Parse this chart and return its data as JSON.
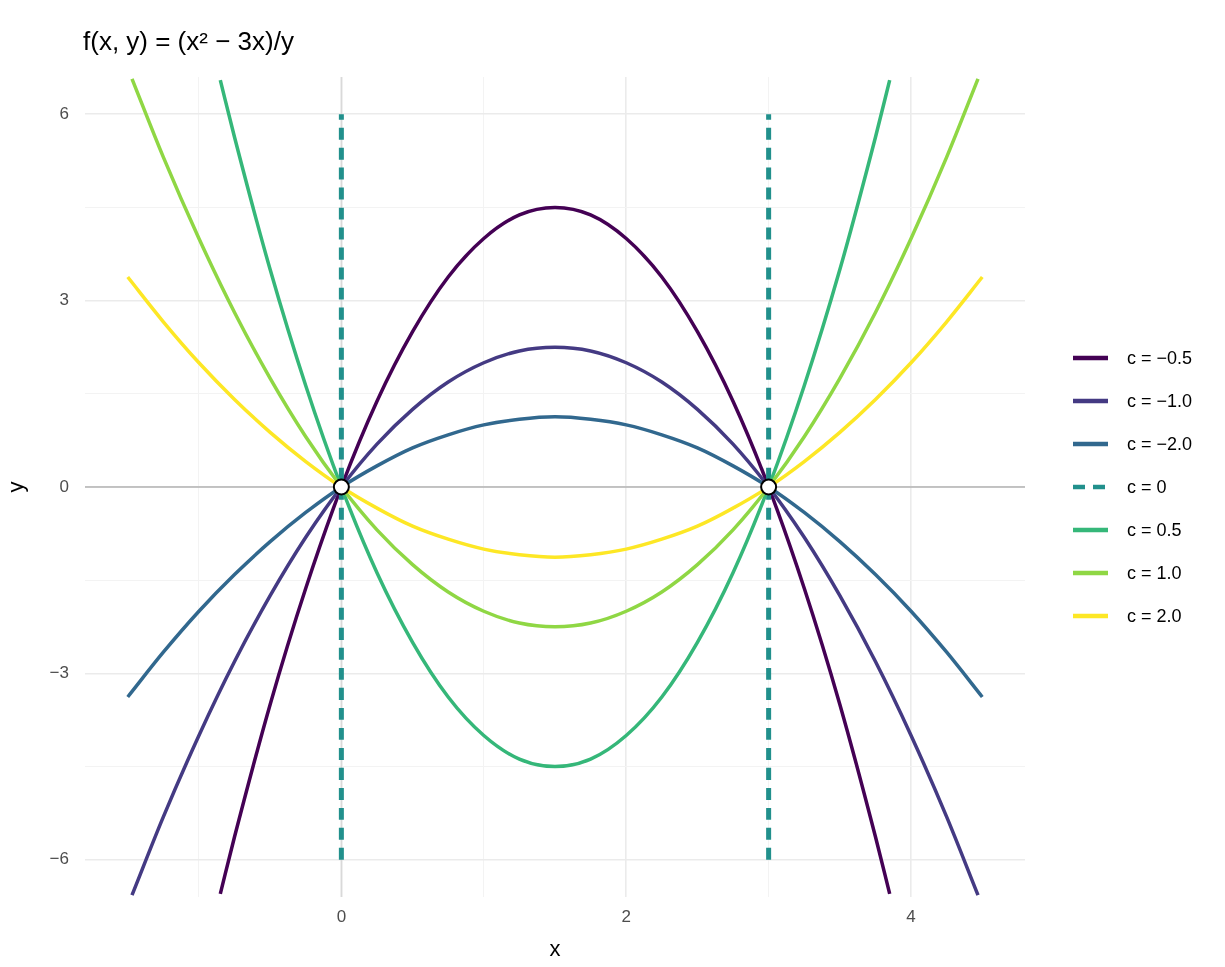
{
  "chart_data": {
    "type": "line",
    "title": "f(x, y) = (x² − 3x)/y",
    "xlabel": "x",
    "ylabel": "y",
    "xlim": [
      -1.8,
      4.8
    ],
    "ylim": [
      -6.6,
      6.6
    ],
    "xticks": [
      {
        "value": -1,
        "label": null
      },
      0,
      {
        "value": 1,
        "label": null
      },
      2,
      {
        "value": 3,
        "label": null
      },
      4
    ],
    "yticks": [
      {
        "value": -6,
        "label": "−6"
      },
      {
        "value": -4.5,
        "label": null
      },
      {
        "value": -3,
        "label": "−3"
      },
      {
        "value": -1.5,
        "label": null
      },
      0,
      {
        "value": 1.5,
        "label": null
      },
      3,
      {
        "value": 4.5,
        "label": null
      },
      6
    ],
    "grid": true,
    "legend": "right",
    "ref_lines": [
      {
        "axis": "y",
        "value": 0,
        "color": "#b3b3b3"
      },
      {
        "axis": "x",
        "value": 0,
        "color": "#d9d9d9"
      }
    ],
    "series": [
      {
        "name": "c = −0.5",
        "color": "#440154",
        "x": [
          -0.85,
          -0.75,
          -0.5,
          -0.25,
          0,
          0.25,
          0.5,
          0.75,
          1,
          1.25,
          1.5,
          1.75,
          2,
          2.25,
          2.5,
          2.75,
          3,
          3.25,
          3.5,
          3.75,
          3.85
        ],
        "values": [
          -6.55,
          -5.63,
          -3.5,
          -1.63,
          0,
          1.38,
          2.5,
          3.38,
          4,
          4.38,
          4.5,
          4.38,
          4,
          3.38,
          2.5,
          1.38,
          0,
          -1.63,
          -3.5,
          -5.63,
          -6.55
        ]
      },
      {
        "name": "c = −1.0",
        "color": "#443a83",
        "x": [
          -1.47,
          -1.25,
          -1,
          -0.75,
          -0.5,
          -0.25,
          0,
          0.25,
          0.5,
          0.75,
          1,
          1.25,
          1.5,
          1.75,
          2,
          2.25,
          2.5,
          2.75,
          3,
          3.25,
          3.5,
          3.75,
          4,
          4.25,
          4.47
        ],
        "values": [
          -6.57,
          -5.31,
          -4,
          -2.81,
          -1.75,
          -0.81,
          0,
          0.69,
          1.25,
          1.69,
          2,
          2.19,
          2.25,
          2.19,
          2,
          1.69,
          1.25,
          0.69,
          0,
          -0.81,
          -1.75,
          -2.81,
          -4,
          -5.31,
          -6.57
        ]
      },
      {
        "name": "c = −2.0",
        "color": "#31688e",
        "x": [
          -1.5,
          -1.25,
          -1,
          -0.75,
          -0.5,
          -0.25,
          0,
          0.25,
          0.5,
          0.75,
          1,
          1.25,
          1.5,
          1.75,
          2,
          2.25,
          2.5,
          2.75,
          3,
          3.25,
          3.5,
          3.75,
          4,
          4.25,
          4.5
        ],
        "values": [
          -3.38,
          -2.66,
          -2,
          -1.41,
          -0.88,
          -0.41,
          0,
          0.34,
          0.63,
          0.84,
          1,
          1.09,
          1.13,
          1.09,
          1,
          0.84,
          0.63,
          0.34,
          0,
          -0.41,
          -0.88,
          -1.41,
          -2,
          -2.66,
          -3.38
        ]
      },
      {
        "name": "c = 0",
        "color": "#21908c",
        "line_style": "dashed",
        "x": [
          0,
          0
        ],
        "values": [
          -6,
          6
        ]
      },
      {
        "color": "#21908c",
        "line_style": "dashed",
        "x": [
          3,
          3
        ],
        "values": [
          -6,
          6
        ]
      },
      {
        "name": "c = 0.5",
        "color": "#35b779",
        "x": [
          -0.85,
          -0.75,
          -0.5,
          -0.25,
          0,
          0.25,
          0.5,
          0.75,
          1,
          1.25,
          1.5,
          1.75,
          2,
          2.25,
          2.5,
          2.75,
          3,
          3.25,
          3.5,
          3.75,
          3.85
        ],
        "values": [
          6.55,
          5.63,
          3.5,
          1.63,
          0,
          -1.38,
          -2.5,
          -3.38,
          -4,
          -4.38,
          -4.5,
          -4.38,
          -4,
          -3.38,
          -2.5,
          -1.38,
          0,
          1.63,
          3.5,
          5.63,
          6.55
        ]
      },
      {
        "name": "c = 1.0",
        "color": "#8fd744",
        "x": [
          -1.47,
          -1.25,
          -1,
          -0.75,
          -0.5,
          -0.25,
          0,
          0.25,
          0.5,
          0.75,
          1,
          1.25,
          1.5,
          1.75,
          2,
          2.25,
          2.5,
          2.75,
          3,
          3.25,
          3.5,
          3.75,
          4,
          4.25,
          4.47
        ],
        "values": [
          6.57,
          5.31,
          4,
          2.81,
          1.75,
          0.81,
          0,
          -0.69,
          -1.25,
          -1.69,
          -2,
          -2.19,
          -2.25,
          -2.19,
          -2,
          -1.69,
          -1.25,
          -0.69,
          0,
          0.81,
          1.75,
          2.81,
          4,
          5.31,
          6.57
        ]
      },
      {
        "name": "c = 2.0",
        "color": "#fde725",
        "x": [
          -1.5,
          -1.25,
          -1,
          -0.75,
          -0.5,
          -0.25,
          0,
          0.25,
          0.5,
          0.75,
          1,
          1.25,
          1.5,
          1.75,
          2,
          2.25,
          2.5,
          2.75,
          3,
          3.25,
          3.5,
          3.75,
          4,
          4.25,
          4.5
        ],
        "values": [
          3.38,
          2.66,
          2,
          1.41,
          0.88,
          0.41,
          0,
          -0.34,
          -0.63,
          -0.84,
          -1,
          -1.09,
          -1.13,
          -1.09,
          -1,
          -0.84,
          -0.63,
          -0.34,
          0,
          0.41,
          0.88,
          1.41,
          2,
          2.66,
          3.38
        ]
      },
      {
        "type": "scatter",
        "marker": "circle",
        "color": "#ffffff",
        "x": [
          0,
          3
        ],
        "values": [
          0,
          0
        ]
      }
    ]
  }
}
